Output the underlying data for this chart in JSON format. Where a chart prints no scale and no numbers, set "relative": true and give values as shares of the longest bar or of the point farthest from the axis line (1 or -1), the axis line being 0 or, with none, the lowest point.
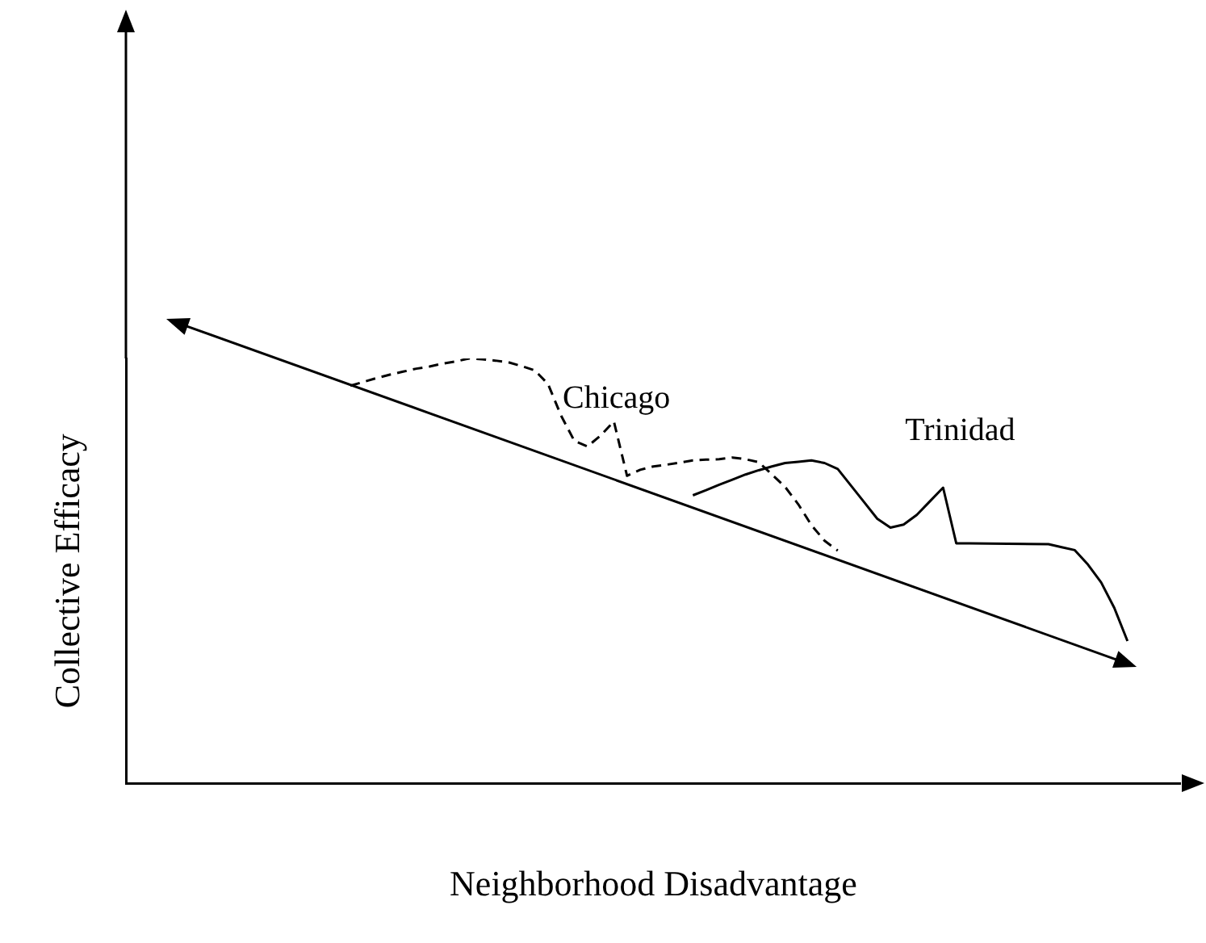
{
  "chart_data": {
    "type": "line",
    "relative": true,
    "xlabel": "Neighborhood Disadvantage",
    "ylabel": "Collective Efficacy",
    "legend": false,
    "marker": "none",
    "grid": false,
    "categories": [
      null,
      null,
      null,
      null,
      null,
      null,
      null,
      null,
      null,
      null,
      null,
      null,
      null,
      null,
      null,
      null,
      null,
      null,
      null,
      null,
      null,
      null,
      null,
      null,
      null,
      null,
      null,
      null,
      null,
      null,
      null,
      null,
      null,
      null,
      null,
      null,
      null,
      null,
      null,
      null,
      null,
      null,
      null,
      null,
      null,
      null,
      null,
      null,
      null,
      null,
      null,
      null,
      null,
      null,
      null,
      null,
      null,
      null,
      null,
      null,
      null,
      null,
      null,
      null,
      null,
      null,
      null,
      null,
      null,
      null,
      null,
      null,
      null,
      null,
      null,
      null,
      null,
      null,
      null,
      null,
      null
    ],
    "series": [
      {
        "name": "Chicago",
        "color": "#000000",
        "line_style": "dashed",
        "values": [
          null,
          null,
          null,
          null,
          null,
          null,
          null,
          null,
          null,
          null,
          null,
          null,
          null,
          null,
          null,
          null,
          null,
          0.936,
          0.945,
          0.954,
          0.962,
          0.969,
          0.976,
          0.981,
          0.988,
          0.993,
          1,
          0.998,
          0.995,
          0.991,
          0.982,
          0.972,
          0.94,
          0.865,
          0.806,
          0.793,
          0.819,
          0.852,
          0.724,
          0.738,
          0.746,
          0.75,
          0.755,
          0.76,
          0.762,
          0.763,
          0.767,
          0.763,
          0.756,
          0.727,
          0.698,
          0.657,
          0.608,
          0.571,
          0.548,
          null,
          null,
          null,
          null,
          null,
          null,
          null,
          null,
          null,
          null,
          null,
          null,
          null,
          null,
          null,
          null,
          null,
          null,
          null,
          null,
          null,
          null,
          null,
          null,
          null,
          null
        ]
      },
      {
        "name": "Trinidad",
        "color": "#000000",
        "line_style": "solid",
        "values": [
          null,
          null,
          null,
          null,
          null,
          null,
          null,
          null,
          null,
          null,
          null,
          null,
          null,
          null,
          null,
          null,
          null,
          null,
          null,
          null,
          null,
          null,
          null,
          null,
          null,
          null,
          null,
          null,
          null,
          null,
          null,
          null,
          null,
          null,
          null,
          null,
          null,
          null,
          null,
          null,
          null,
          null,
          null,
          0.678,
          0.69,
          0.703,
          0.715,
          0.727,
          0.737,
          0.746,
          0.754,
          0.757,
          0.76,
          0.754,
          0.74,
          0.701,
          0.662,
          0.623,
          0.602,
          0.609,
          0.632,
          0.664,
          0.696,
          0.565,
          0.565,
          null,
          null,
          null,
          null,
          null,
          0.563,
          0.556,
          0.549,
          0.515,
          0.473,
          0.413,
          0.335,
          null,
          null,
          null,
          null
        ]
      }
    ]
  }
}
